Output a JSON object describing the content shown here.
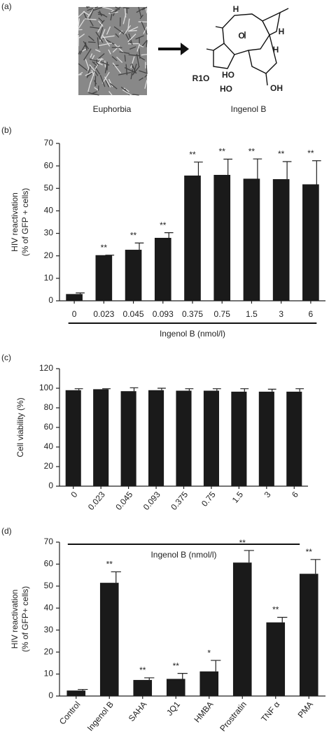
{
  "panel_a": {
    "label": "(a)",
    "source_caption": "Euphorbia",
    "compound_caption": "Ingenol B",
    "structure_labels": [
      "H",
      "H",
      "H",
      "O",
      "R1O",
      "HO",
      "HO",
      "OH"
    ]
  },
  "chart_data": [
    {
      "type": "bar",
      "label": "(b)",
      "ylabel": [
        "HIV reactivation",
        "(% of GFP + cells)"
      ],
      "xlabel": "Ingenol B (nmol/l)",
      "categories": [
        "0",
        "0.023",
        "0.045",
        "0.093",
        "0.375",
        "0.75",
        "1.5",
        "3",
        "6"
      ],
      "values": [
        3,
        20.3,
        22.7,
        28,
        55.7,
        56,
        54.3,
        54.1,
        51.8
      ],
      "errors": [
        0.5,
        0,
        3,
        2.3,
        6,
        7,
        8.8,
        7.8,
        10.5
      ],
      "annotations": [
        null,
        "**",
        "**",
        "**",
        "**",
        "**",
        "**",
        "**",
        "**"
      ],
      "color": "#1a1a1a",
      "ylim": [
        0,
        70
      ],
      "yticks": [
        0,
        10,
        20,
        30,
        40,
        50,
        60,
        70
      ]
    },
    {
      "type": "bar",
      "label": "(c)",
      "ylabel": "Cell viability (%)",
      "xlabel": "Ingenol B (nmol/l)",
      "categories": [
        "0",
        "0.023",
        "0.045",
        "0.093",
        "0.375",
        "0.75",
        "1.5",
        "3",
        "6"
      ],
      "values": [
        98,
        99,
        97,
        98,
        97.5,
        97.5,
        96.5,
        96.5,
        96.5
      ],
      "errors": [
        1.5,
        0.5,
        3.5,
        2,
        2,
        2,
        3,
        2.5,
        3
      ],
      "color": "#1a1a1a",
      "ylim": [
        0,
        120
      ],
      "yticks": [
        0,
        20,
        40,
        60,
        80,
        100,
        120
      ]
    },
    {
      "type": "bar",
      "label": "(d)",
      "ylabel": [
        "HIV reactivation",
        "(% of GFP+ cells)"
      ],
      "categories": [
        "Control",
        "Ingenol B",
        "SAHA",
        "JQ1",
        "HMBA",
        "Prostratin",
        "TNF α",
        "PMA"
      ],
      "values": [
        2.5,
        51.5,
        7.3,
        7.8,
        11.2,
        60.7,
        33.5,
        55.6
      ],
      "errors": [
        0.5,
        5,
        1,
        2.5,
        5,
        5.5,
        2.3,
        6.5
      ],
      "annotations": [
        null,
        "**",
        "**",
        "**",
        "*",
        "**",
        "**",
        "**"
      ],
      "color": "#1a1a1a",
      "ylim": [
        0,
        70
      ],
      "yticks": [
        0,
        10,
        20,
        30,
        40,
        50,
        60,
        70
      ]
    }
  ]
}
